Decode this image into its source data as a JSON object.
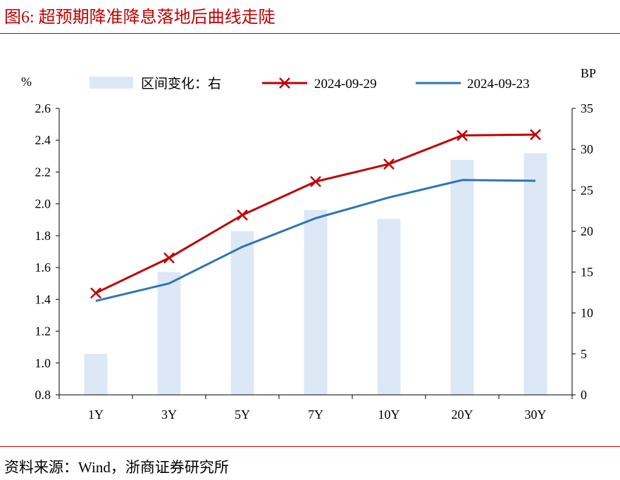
{
  "figure": {
    "title": "图6:   超预期降准降息落地后曲线走陡",
    "source": "资料来源：Wind，浙商证券研究所"
  },
  "chart_data": {
    "type": "bar+line",
    "categories": [
      "1Y",
      "3Y",
      "5Y",
      "7Y",
      "10Y",
      "20Y",
      "30Y"
    ],
    "left_axis": {
      "label": "%",
      "range": [
        0.8,
        2.6
      ],
      "ticks": [
        "0.8",
        "1.0",
        "1.2",
        "1.4",
        "1.6",
        "1.8",
        "2.0",
        "2.2",
        "2.4",
        "2.6"
      ]
    },
    "right_axis": {
      "label": "BP",
      "range": [
        0,
        35
      ],
      "ticks": [
        "0",
        "5",
        "10",
        "15",
        "20",
        "25",
        "30",
        "35"
      ]
    },
    "series": [
      {
        "name": "区间变化：右",
        "kind": "bar",
        "axis": "right",
        "color": "#dce8f6",
        "values": [
          5.0,
          15.0,
          20.0,
          22.6,
          21.5,
          28.7,
          29.5
        ]
      },
      {
        "name": "2024-09-29",
        "kind": "line",
        "axis": "left",
        "color": "#c00000",
        "marker": "x",
        "values": [
          1.44,
          1.66,
          1.93,
          2.14,
          2.25,
          2.43,
          2.435
        ]
      },
      {
        "name": "2024-09-23",
        "kind": "line",
        "axis": "left",
        "color": "#2e75b6",
        "marker": "none",
        "values": [
          1.39,
          1.5,
          1.73,
          1.91,
          2.04,
          2.15,
          2.145
        ]
      }
    ],
    "legend": "top",
    "grid": false
  }
}
